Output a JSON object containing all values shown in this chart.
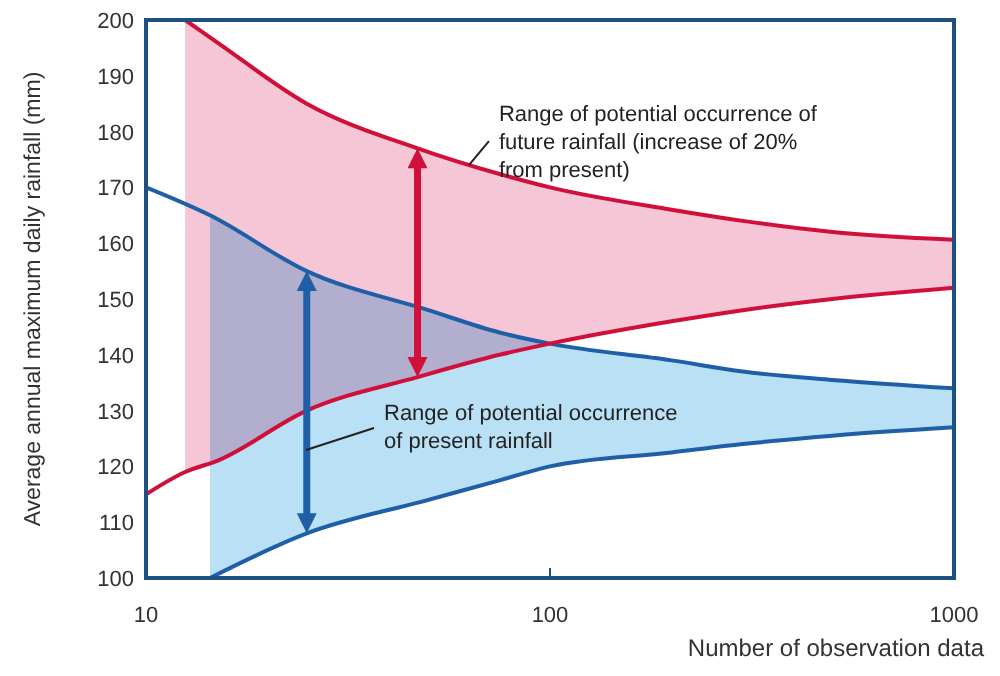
{
  "chart_data": {
    "type": "line",
    "xlabel": "Number of observation data",
    "ylabel": "Average annual maximum daily rainfall (mm)",
    "log": "x",
    "xlim": [
      10,
      1000
    ],
    "xticks": [
      10,
      100,
      1000
    ],
    "ylim": [
      100,
      200
    ],
    "yticks": [
      100,
      110,
      120,
      130,
      140,
      150,
      160,
      170,
      180,
      190,
      200
    ],
    "marker": "none",
    "line_style": "solid",
    "series": [
      {
        "color": "#1f5fa8",
        "x": [
          14.4,
          25,
          50,
          75,
          100,
          200,
          300,
          500,
          1000
        ],
        "values": [
          100,
          108,
          114,
          117.5,
          120,
          122.5,
          124,
          125.5,
          127
        ],
        "upper": [
          165,
          155,
          148,
          144,
          142,
          139,
          137,
          135.5,
          134
        ],
        "lower": [
          100,
          108,
          114,
          117.5,
          120,
          122.5,
          124,
          125.5,
          127
        ]
      },
      {
        "color": "#d0103a",
        "x": [
          12.5,
          15,
          25,
          47,
          75,
          100,
          200,
          300,
          500,
          1000
        ],
        "values": [
          200,
          196,
          185,
          177,
          172.4,
          170,
          166,
          164,
          162,
          160.6
        ],
        "upper": [
          200,
          196,
          185,
          177,
          172.4,
          170,
          166,
          164,
          162,
          160.6
        ],
        "lower": [
          119,
          121,
          130,
          136,
          140,
          142,
          146,
          148,
          150,
          152
        ]
      },
      {
        "color": "#1f5fa8",
        "x": [
          10,
          14.4,
          25,
          50,
          75,
          100,
          200,
          300,
          500,
          1000
        ],
        "values": [
          170,
          165,
          155,
          148,
          144,
          142,
          139,
          137,
          135.5,
          134
        ]
      },
      {
        "color": "#d0103a",
        "x": [
          10,
          12.5,
          15,
          25,
          47,
          75,
          100,
          200,
          300,
          500,
          1000
        ],
        "values": [
          115,
          119,
          121,
          130,
          136,
          140,
          142,
          146,
          148,
          150,
          152
        ]
      }
    ],
    "annotations": [
      {
        "text": "Range of potential occurrence of\nfuture rainfall (increase of 20%\nfrom present)",
        "x": 63,
        "y": 174
      },
      "Range of potential occurrence\nof present rainfall"
    ]
  }
}
